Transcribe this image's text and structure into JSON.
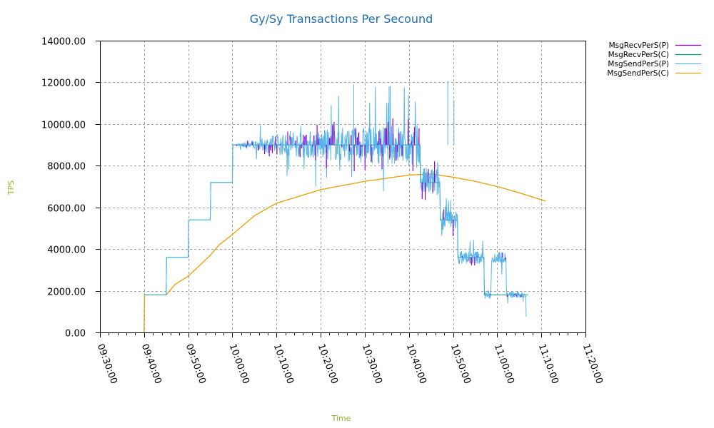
{
  "chart_data": {
    "type": "line",
    "title": "Gy/Sy Transactions Per Secound",
    "xlabel": "Time",
    "ylabel": "TPS",
    "ylim": [
      0,
      14000
    ],
    "yticks": [
      "0.00",
      "2000.00",
      "4000.00",
      "6000.00",
      "8000.00",
      "10000.00",
      "12000.00",
      "14000.00"
    ],
    "xlim": [
      "09:30:00",
      "11:20:00"
    ],
    "xticks": [
      "09:30:00",
      "09:40:00",
      "09:50:00",
      "10:00:00",
      "10:10:00",
      "10:20:00",
      "10:30:00",
      "10:40:00",
      "10:50:00",
      "11:00:00",
      "11:10:00",
      "11:20:00"
    ],
    "grid": true,
    "legend_position": "top-right outside",
    "series": [
      {
        "name": "MsgRecvPerS(P)",
        "color": "#9400d3",
        "note": "noisy; closely tracks MsgSendPerS(P)",
        "x_minutes": [
          40,
          45,
          45.1,
          50,
          50.1,
          55,
          55.1,
          60,
          60.1,
          67,
          75,
          82,
          90,
          95,
          100,
          102.5,
          102.6,
          107,
          107.1,
          111,
          111.1,
          117,
          117.1,
          118.6,
          118.7,
          122,
          122.1,
          127
        ],
        "values": [
          1800,
          1800,
          3600,
          3600,
          5400,
          5400,
          7200,
          7200,
          9000,
          9000,
          9000,
          9000,
          9000,
          9000,
          9000,
          9000,
          7200,
          7200,
          5400,
          5400,
          3600,
          3600,
          1800,
          1800,
          3600,
          3600,
          1800,
          1800
        ]
      },
      {
        "name": "MsgRecvPerS(C)",
        "color": "#009e73",
        "note": "largely hidden under MsgSendPerS(P)",
        "x_minutes": [
          40,
          45,
          45.1,
          50,
          50.1,
          55,
          55.1,
          60,
          60.1,
          102.5,
          102.6,
          107,
          107.1,
          111,
          111.1,
          117,
          117.1,
          127
        ],
        "values": [
          1800,
          1800,
          3600,
          3600,
          5400,
          5400,
          7200,
          7200,
          9000,
          9000,
          7200,
          7200,
          5400,
          5400,
          3600,
          3600,
          1800,
          1800
        ]
      },
      {
        "name": "MsgSendPerS(P)",
        "color": "#56b4e9",
        "note": "step load test with heavy noise; spikes up to ~12000, drops to 0 at ~11:06",
        "x_minutes": [
          40,
          45,
          45.1,
          50,
          50.1,
          55,
          55.1,
          60,
          60.1,
          70,
          80,
          90,
          98,
          102.5,
          102.6,
          107,
          107.1,
          111,
          111.1,
          117,
          117.1,
          118.6,
          118.7,
          122,
          122.1,
          126.5,
          126.6
        ],
        "values": [
          1800,
          1800,
          3600,
          3600,
          5400,
          5400,
          7200,
          7200,
          9000,
          9000,
          9000,
          9000,
          9000,
          9000,
          7200,
          7200,
          5400,
          5400,
          3600,
          3600,
          1800,
          1800,
          3600,
          3600,
          1800,
          1800,
          0
        ],
        "noise_amplitude": [
          0,
          0,
          0,
          0,
          0,
          0,
          0,
          0,
          0,
          600,
          900,
          1100,
          1200,
          1200,
          900,
          900,
          600,
          600,
          400,
          400,
          250,
          250,
          350,
          350,
          200,
          200,
          0
        ],
        "peaks": [
          12000,
          11900,
          11800,
          11150
        ]
      },
      {
        "name": "MsgSendPerS(C)",
        "color": "#e69f00",
        "note": "smooth cumulative-average curve",
        "x_minutes": [
          40,
          40.1,
          45,
          47,
          50,
          55,
          57,
          60,
          65,
          70,
          80,
          90,
          100,
          105,
          110,
          115,
          120,
          125,
          131
        ],
        "values": [
          0,
          1800,
          1800,
          2300,
          2700,
          3700,
          4200,
          4700,
          5600,
          6200,
          6850,
          7250,
          7550,
          7600,
          7450,
          7250,
          7000,
          6700,
          6300
        ]
      }
    ]
  },
  "legend": {
    "items": [
      {
        "label": "MsgRecvPerS(P)",
        "color": "#9400d3"
      },
      {
        "label": "MsgRecvPerS(C)",
        "color": "#009e73"
      },
      {
        "label": "MsgSendPerS(P)",
        "color": "#56b4e9"
      },
      {
        "label": "MsgSendPerS(C)",
        "color": "#e69f00"
      }
    ]
  }
}
